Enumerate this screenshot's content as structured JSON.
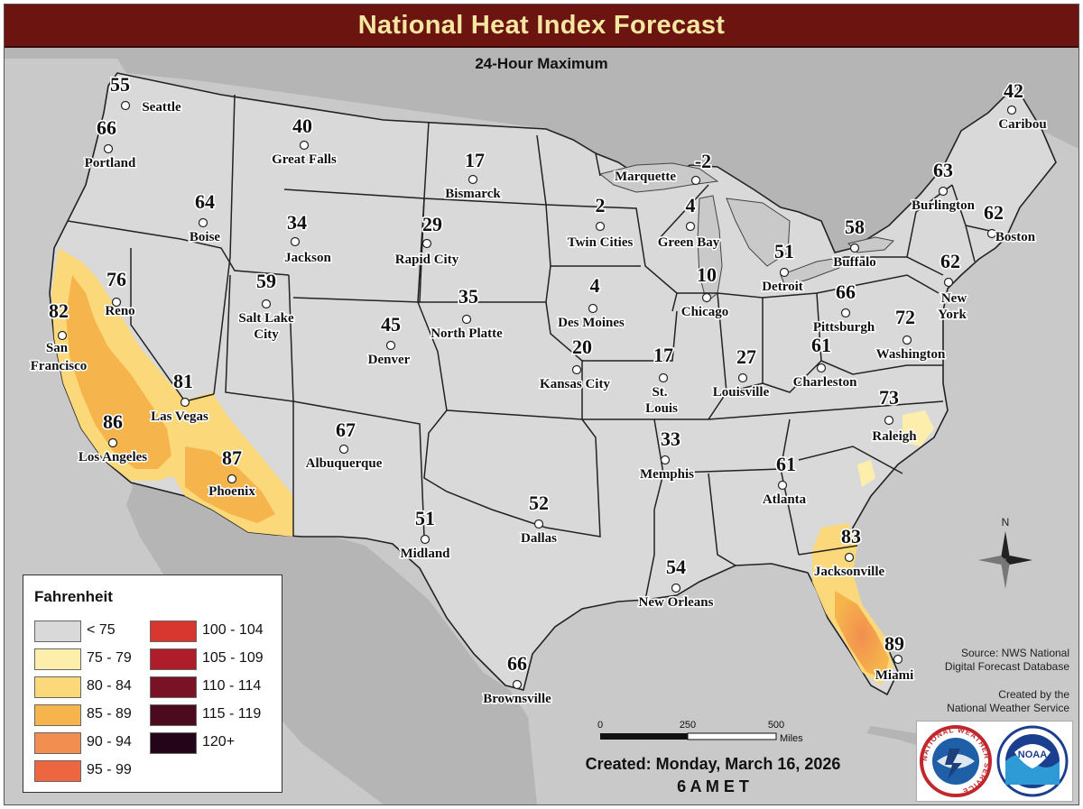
{
  "header": {
    "title": "National Heat Index Forecast",
    "subtitle": "24-Hour Maximum"
  },
  "colors": {
    "title_bar": "#6b1410",
    "title_text": "#f4e7a2",
    "ocean": "#c9c9c9",
    "land_outside": "#b5b5b5",
    "land_us": "#d9d9d9"
  },
  "cities": [
    {
      "name": "Seattle",
      "value": "55"
    },
    {
      "name": "Portland",
      "value": "66"
    },
    {
      "name": "Boise",
      "value": "64"
    },
    {
      "name": "Great Falls",
      "value": "40"
    },
    {
      "name": "Bismarck",
      "value": "17"
    },
    {
      "name": "Jackson",
      "value": "34"
    },
    {
      "name": "Rapid City",
      "value": "29"
    },
    {
      "name": "Marquette",
      "value": "-2"
    },
    {
      "name": "Twin Cities",
      "value": "2"
    },
    {
      "name": "Green Bay",
      "value": "4"
    },
    {
      "name": "Caribou",
      "value": "42"
    },
    {
      "name": "Burlington",
      "value": "63"
    },
    {
      "name": "Boston",
      "value": "62"
    },
    {
      "name": "Reno",
      "value": "76"
    },
    {
      "name": "Salt Lake City",
      "value": "59"
    },
    {
      "name": "North Platte",
      "value": "35"
    },
    {
      "name": "Des Moines",
      "value": "4"
    },
    {
      "name": "Chicago",
      "value": "10"
    },
    {
      "name": "Detroit",
      "value": "51"
    },
    {
      "name": "Buffalo",
      "value": "58"
    },
    {
      "name": "New York",
      "value": "62"
    },
    {
      "name": "San Francisco",
      "value": "82"
    },
    {
      "name": "Denver",
      "value": "45"
    },
    {
      "name": "Kansas City",
      "value": "20"
    },
    {
      "name": "St. Louis",
      "value": "17"
    },
    {
      "name": "Louisville",
      "value": "27"
    },
    {
      "name": "Pittsburgh",
      "value": "66"
    },
    {
      "name": "Charleston",
      "value": "61"
    },
    {
      "name": "Washington",
      "value": "72"
    },
    {
      "name": "Las Vegas",
      "value": "81"
    },
    {
      "name": "Los Angeles",
      "value": "86"
    },
    {
      "name": "Raleigh",
      "value": "73"
    },
    {
      "name": "Phoenix",
      "value": "87"
    },
    {
      "name": "Albuquerque",
      "value": "67"
    },
    {
      "name": "Memphis",
      "value": "33"
    },
    {
      "name": "Atlanta",
      "value": "61"
    },
    {
      "name": "Dallas",
      "value": "52"
    },
    {
      "name": "Midland",
      "value": "51"
    },
    {
      "name": "Jacksonville",
      "value": "83"
    },
    {
      "name": "New Orleans",
      "value": "54"
    },
    {
      "name": "Brownsville",
      "value": "66"
    },
    {
      "name": "Miami",
      "value": "89"
    }
  ],
  "legend": {
    "title": "Fahrenheit",
    "items": [
      {
        "label": "< 75",
        "color": "#d9d9d9"
      },
      {
        "label": "75 - 79",
        "color": "#fdeeac"
      },
      {
        "label": "80 - 84",
        "color": "#fbd879"
      },
      {
        "label": "85 - 89",
        "color": "#f6b44c"
      },
      {
        "label": "90 - 94",
        "color": "#f28e4f"
      },
      {
        "label": "95 - 99",
        "color": "#ee6640"
      },
      {
        "label": "100 - 104",
        "color": "#d8372f"
      },
      {
        "label": "105 - 109",
        "color": "#ae1e2a"
      },
      {
        "label": "110 - 114",
        "color": "#7a1226"
      },
      {
        "label": "115 - 119",
        "color": "#4c0a1f"
      },
      {
        "label": "120+",
        "color": "#230418"
      }
    ]
  },
  "source": {
    "line1": "Source: NWS National",
    "line2": "Digital Forecast Database"
  },
  "credit": {
    "line1": "Created by the",
    "line2": "National Weather Service"
  },
  "scale_bar": {
    "ticks": [
      "0",
      "250",
      "500"
    ],
    "unit": "Miles"
  },
  "created": {
    "date": "Created: Monday, March 16, 2026",
    "time": "6 A M E T"
  },
  "north_label": "N",
  "logos": {
    "nws_ring_text": "NATIONAL WEATHER SERVICE",
    "noaa_text": "NOAA"
  }
}
